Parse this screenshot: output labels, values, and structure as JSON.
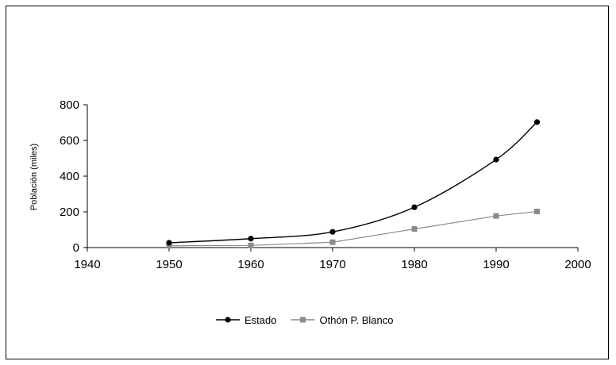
{
  "chart_data": {
    "type": "line",
    "title": "",
    "xlabel": "",
    "ylabel": "Población (miles)",
    "xlim": [
      1940,
      2000
    ],
    "ylim": [
      0,
      800
    ],
    "x_ticks": [
      1940,
      1950,
      1960,
      1970,
      1980,
      1990,
      2000
    ],
    "y_ticks": [
      0,
      200,
      400,
      600,
      800
    ],
    "grid": false,
    "legend_position": "bottom",
    "series": [
      {
        "name": "Estado",
        "color": "#000000",
        "marker": "circle",
        "smooth": true,
        "x": [
          1950,
          1960,
          1970,
          1980,
          1990,
          1995
        ],
        "y": [
          27,
          50,
          88,
          226,
          493,
          703
        ]
      },
      {
        "name": "Othón P. Blanco",
        "color": "#8a8a8a",
        "marker": "square",
        "smooth": false,
        "x": [
          1950,
          1960,
          1970,
          1980,
          1990,
          1995
        ],
        "y": [
          10,
          12,
          30,
          104,
          177,
          202
        ]
      }
    ]
  }
}
